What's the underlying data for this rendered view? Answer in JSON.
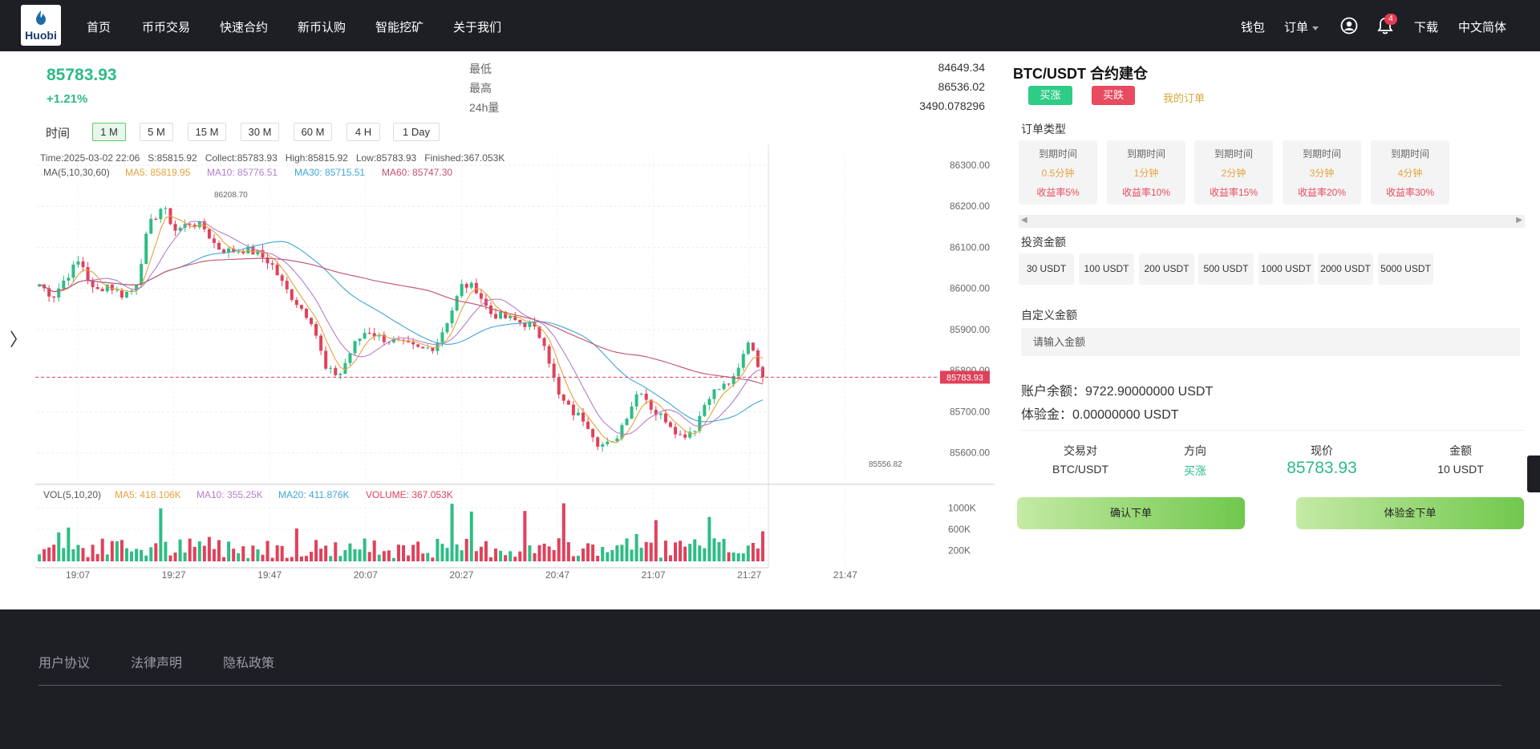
{
  "nav": {
    "logo_text": "Huobi",
    "links": [
      "首页",
      "币币交易",
      "快速合约",
      "新币认购",
      "智能挖矿",
      "关于我们"
    ],
    "wallet": "钱包",
    "orders": "订单",
    "notification_count": "4",
    "download": "下载",
    "language": "中文简体"
  },
  "ticker": {
    "price": "85783.93",
    "change": "+1.21%",
    "low_label": "最低",
    "low": "84649.34",
    "high_label": "最高",
    "high": "86536.02",
    "vol_label": "24h量",
    "vol": "3490.078296"
  },
  "intervals": {
    "time_label": "时间",
    "items": [
      "1 M",
      "5 M",
      "15 M",
      "30 M",
      "60 M",
      "4 H",
      "1 Day"
    ],
    "active": "1 M"
  },
  "chart_data": {
    "type": "candlestick",
    "info_line": "Time:2025-03-02 22:06   S:85815.92   Collect:85783.93   High:85815.92   Low:85783.93   Finished:367.053K",
    "ma_title": "MA(5,10,30,60)",
    "ma5": "MA5: 85819.95",
    "ma10": "MA10: 85776.51",
    "ma30": "MA30: 85715.51",
    "ma60": "MA60: 85747.30",
    "y_ticks": [
      "86300.00",
      "86200.00",
      "86100.00",
      "86000.00",
      "85900.00",
      "85800.00",
      "85700.00",
      "85600.00"
    ],
    "y_tick_values": [
      86300,
      86200,
      86100,
      86000,
      85900,
      85800,
      85700,
      85600
    ],
    "ylim": [
      85535,
      86335
    ],
    "current_price": "85783.93",
    "current_price_value": 85783.93,
    "max_marker": "86208.70",
    "min_marker": "85556.82",
    "x_ticks": [
      "19:07",
      "19:27",
      "19:47",
      "20:07",
      "20:27",
      "20:47",
      "21:07",
      "21:27",
      "21:47"
    ],
    "vol_title": "VOL(5,10,20)",
    "vol_ma5": "MA5: 418.106K",
    "vol_ma10": "MA10: 355.25K",
    "vol_ma20": "MA20: 411.876K",
    "vol_volume": "VOLUME: 367.053K",
    "vol_ticks": [
      "1000K",
      "600K",
      "200K"
    ],
    "vol_tick_values": [
      1000,
      600,
      200
    ],
    "vol_max": 1200,
    "close_path": [
      86010,
      85980,
      86030,
      86070,
      85990,
      86010,
      85985,
      85998,
      86150,
      86200,
      86140,
      86160,
      86150,
      86100,
      86090,
      86095,
      86085,
      86060,
      86000,
      85960,
      85920,
      85800,
      85790,
      85860,
      85900,
      85880,
      85870,
      85860,
      85850,
      85860,
      85930,
      86010,
      86000,
      85940,
      85930,
      85920,
      85910,
      85870,
      85740,
      85700,
      85680,
      85620,
      85620,
      85690,
      85760,
      85700,
      85680,
      85640,
      85660,
      85740,
      85760,
      85780,
      85880,
      85784
    ],
    "colors": {
      "up": "#2ebd85",
      "down": "#e0415a",
      "ma5": "#e6a23c",
      "ma10": "#b37fc8",
      "ma30": "#42a5d8",
      "ma60": "#c2506f"
    }
  },
  "panel": {
    "title_pair": "BTC/USDT",
    "title_suffix": "合约建仓",
    "buy_up": "买涨",
    "buy_down": "买跌",
    "my_orders": "我的订单",
    "order_type_label": "订单类型",
    "expiries": [
      {
        "label": "到期时间",
        "time": "0.5分钟",
        "yield": "收益率5%"
      },
      {
        "label": "到期时间",
        "time": "1分钟",
        "yield": "收益率10%"
      },
      {
        "label": "到期时间",
        "time": "2分钟",
        "yield": "收益率15%"
      },
      {
        "label": "到期时间",
        "time": "3分钟",
        "yield": "收益率20%"
      },
      {
        "label": "到期时间",
        "time": "4分钟",
        "yield": "收益率30%"
      }
    ],
    "invest_label": "投资金额",
    "amounts": [
      "30 USDT",
      "100 USDT",
      "200 USDT",
      "500 USDT",
      "1000 USDT",
      "2000 USDT",
      "5000 USDT"
    ],
    "custom_label": "自定义金额",
    "custom_placeholder": "请输入金额",
    "balance": "账户余额：9722.90000000 USDT",
    "trial": "体验金：0.00000000 USDT",
    "summary_headers": [
      "交易对",
      "方向",
      "现价",
      "金额"
    ],
    "summary_values": [
      "BTC/USDT",
      "买涨",
      "85783.93",
      "10 USDT"
    ],
    "confirm": "确认下单",
    "trial_order": "体验金下单"
  },
  "footer": {
    "links": [
      "用户协议",
      "法律声明",
      "隐私政策"
    ]
  }
}
